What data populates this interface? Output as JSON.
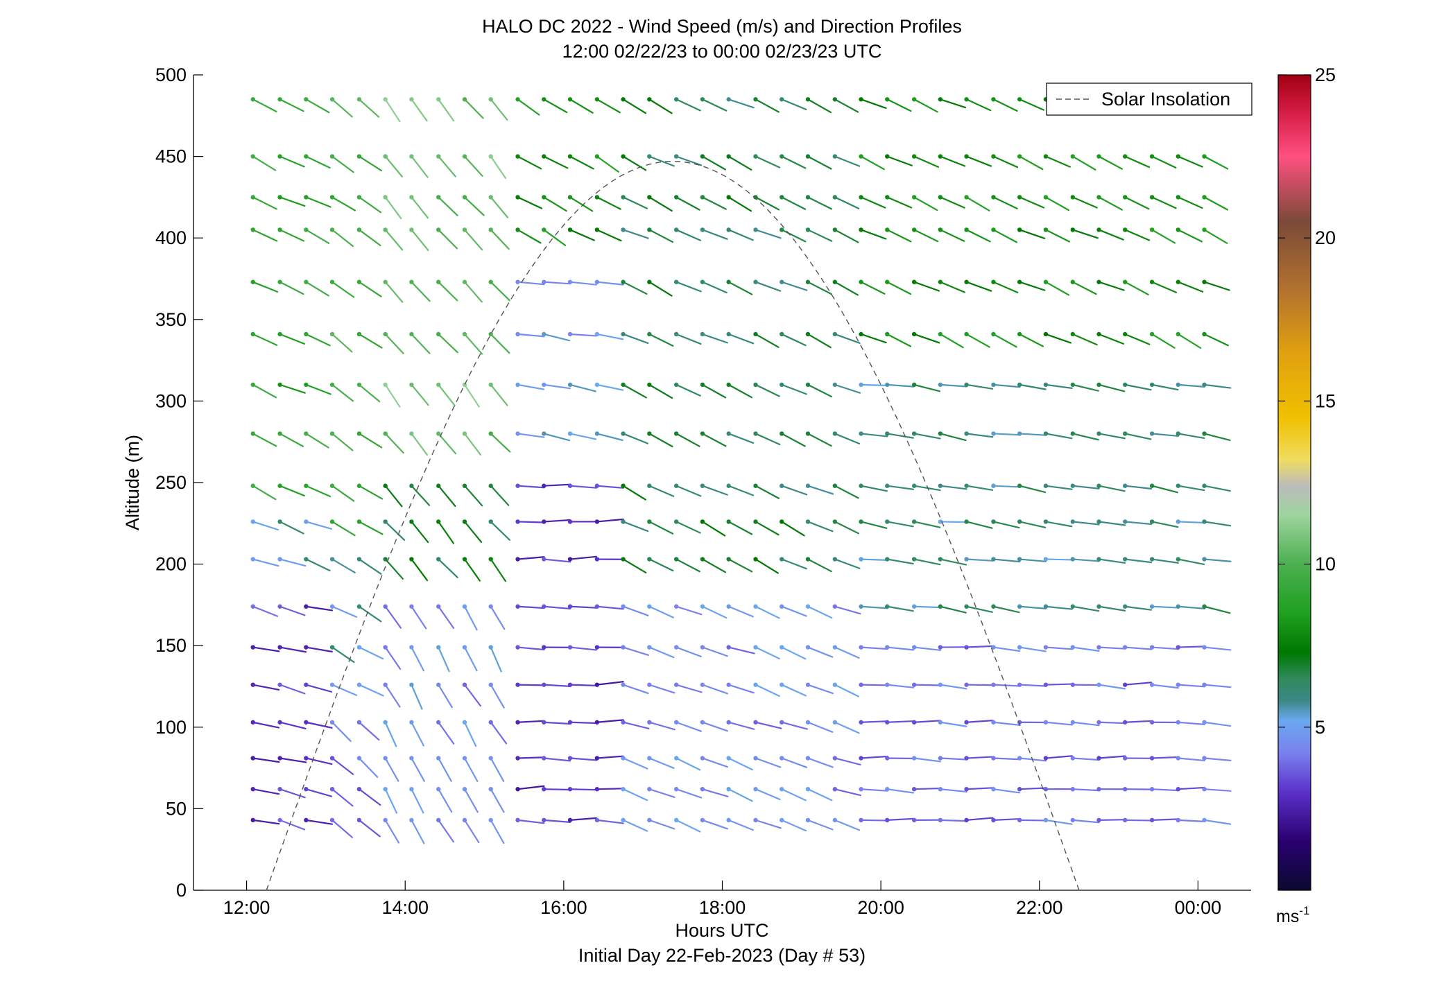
{
  "chart_data": {
    "type": "wind-barb-profile",
    "title": "HALO DC 2022 - Wind Speed (m/s) and Direction Profiles",
    "subtitle": "12:00 02/22/23 to 00:00 02/23/23  UTC",
    "xlabel": "Hours UTC",
    "xlabel2": "Initial Day 22-Feb-2023 (Day # 53)",
    "ylabel": "Altitude (m)",
    "colorbar_unit": "ms",
    "colorbar_unit_exp": "-1",
    "xlim": [
      11.33,
      24.67
    ],
    "ylim": [
      0,
      500
    ],
    "x_ticks": [
      {
        "value": 12,
        "label": "12:00"
      },
      {
        "value": 14,
        "label": "14:00"
      },
      {
        "value": 16,
        "label": "16:00"
      },
      {
        "value": 18,
        "label": "18:00"
      },
      {
        "value": 20,
        "label": "20:00"
      },
      {
        "value": 22,
        "label": "22:00"
      },
      {
        "value": 24,
        "label": "00:00"
      }
    ],
    "y_ticks": [
      0,
      50,
      100,
      150,
      200,
      250,
      300,
      350,
      400,
      450,
      500
    ],
    "colorbar_range": [
      0,
      25
    ],
    "colorbar_ticks": [
      5,
      10,
      15,
      20,
      25
    ],
    "colormap": [
      [
        0,
        "#0a0a30"
      ],
      [
        1.5,
        "#2a0070"
      ],
      [
        3,
        "#5a30c8"
      ],
      [
        4.2,
        "#7a80ee"
      ],
      [
        5.2,
        "#6aa8f0"
      ],
      [
        5.8,
        "#3e8888"
      ],
      [
        6.5,
        "#2e8a5a"
      ],
      [
        7.3,
        "#007800"
      ],
      [
        8.5,
        "#20a020"
      ],
      [
        10,
        "#4caf50"
      ],
      [
        11.5,
        "#9ed49e"
      ],
      [
        12.4,
        "#bbbbbb"
      ],
      [
        13.2,
        "#f0dc60"
      ],
      [
        14.5,
        "#f0c000"
      ],
      [
        16.5,
        "#e0a010"
      ],
      [
        18.5,
        "#b07030"
      ],
      [
        20.5,
        "#7a4a38"
      ],
      [
        22.5,
        "#ff5080"
      ],
      [
        24,
        "#d01840"
      ],
      [
        25,
        "#a00010"
      ]
    ],
    "legend": [
      {
        "label": "Solar Insolation",
        "style": "dashed",
        "color": "#555555"
      }
    ],
    "legend_position": "top-right",
    "solar_insolation": {
      "start": 12.25,
      "end": 22.5,
      "peak_altitude": 447
    },
    "altitudes": [
      43,
      62,
      81,
      103,
      126,
      149,
      174,
      203,
      226,
      248,
      280,
      310,
      341,
      373,
      405,
      425,
      450,
      485
    ],
    "times": [
      12.08,
      12.42,
      12.75,
      13.08,
      13.42,
      13.75,
      14.08,
      14.42,
      14.75,
      15.08,
      15.42,
      15.75,
      16.08,
      16.42,
      16.75,
      17.08,
      17.42,
      17.75,
      18.08,
      18.42,
      18.75,
      19.08,
      19.42,
      19.75,
      20.08,
      20.42,
      20.75,
      21.08,
      21.42,
      21.75,
      22.08,
      22.42,
      22.75,
      23.08,
      23.42,
      23.75,
      24.08
    ],
    "wind": {
      "description": "estimated from barb colour (speed, m/s) and barb orientation (direction, degrees from north, wind blowing from)",
      "segments": [
        {
          "t_start": 12.0,
          "t_end": 12.9,
          "alt_start": 0,
          "alt_end": 180,
          "speed": 3.2,
          "dir": 285
        },
        {
          "t_start": 12.0,
          "t_end": 12.9,
          "alt_start": 180,
          "alt_end": 230,
          "speed": 5.5,
          "dir": 290
        },
        {
          "t_start": 12.0,
          "t_end": 12.9,
          "alt_start": 230,
          "alt_end": 500,
          "speed": 9,
          "dir": 295
        },
        {
          "t_start": 12.9,
          "t_end": 13.6,
          "alt_start": 0,
          "alt_end": 120,
          "speed": 3.8,
          "dir": 310
        },
        {
          "t_start": 12.9,
          "t_end": 13.6,
          "alt_start": 120,
          "alt_end": 210,
          "speed": 5.6,
          "dir": 300
        },
        {
          "t_start": 12.9,
          "t_end": 13.6,
          "alt_start": 210,
          "alt_end": 500,
          "speed": 9.5,
          "dir": 305
        },
        {
          "t_start": 13.6,
          "t_end": 15.35,
          "alt_start": 0,
          "alt_end": 190,
          "speed": 4.6,
          "dir": 330
        },
        {
          "t_start": 13.6,
          "t_end": 15.35,
          "alt_start": 190,
          "alt_end": 260,
          "speed": 7,
          "dir": 320
        },
        {
          "t_start": 13.6,
          "t_end": 15.35,
          "alt_start": 260,
          "alt_end": 500,
          "speed": 10.5,
          "dir": 320
        },
        {
          "t_start": 15.35,
          "t_end": 16.5,
          "alt_start": 0,
          "alt_end": 260,
          "speed": 3,
          "dir": 270
        },
        {
          "t_start": 15.35,
          "t_end": 16.5,
          "alt_start": 260,
          "alt_end": 380,
          "speed": 5,
          "dir": 280
        },
        {
          "t_start": 15.35,
          "t_end": 16.5,
          "alt_start": 380,
          "alt_end": 500,
          "speed": 8,
          "dir": 300
        },
        {
          "t_start": 16.5,
          "t_end": 19.7,
          "alt_start": 0,
          "alt_end": 200,
          "speed": 4.5,
          "dir": 290
        },
        {
          "t_start": 16.5,
          "t_end": 19.7,
          "alt_start": 200,
          "alt_end": 500,
          "speed": 6.5,
          "dir": 295
        },
        {
          "t_start": 19.7,
          "t_end": 24.1,
          "alt_start": 0,
          "alt_end": 160,
          "speed": 4,
          "dir": 272
        },
        {
          "t_start": 19.7,
          "t_end": 24.1,
          "alt_start": 160,
          "alt_end": 330,
          "speed": 6,
          "dir": 278
        },
        {
          "t_start": 19.7,
          "t_end": 24.1,
          "alt_start": 330,
          "alt_end": 500,
          "speed": 8,
          "dir": 295
        }
      ]
    }
  }
}
